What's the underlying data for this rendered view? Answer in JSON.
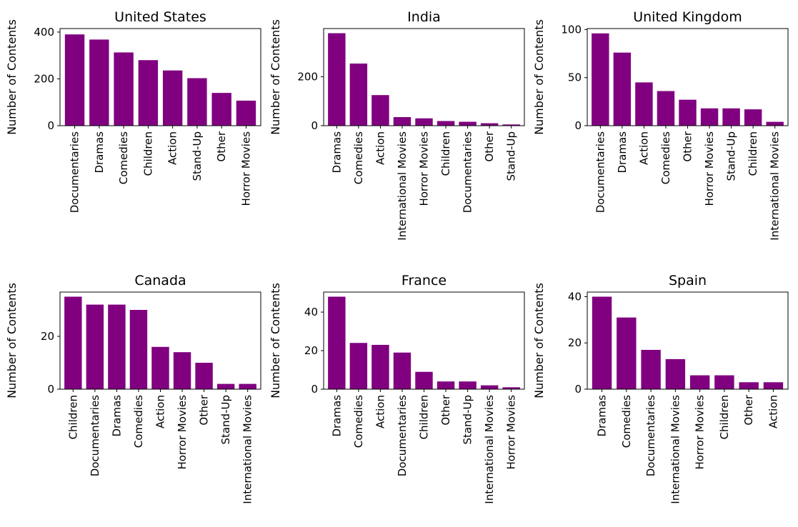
{
  "chart_data": [
    {
      "type": "bar",
      "title": "United States",
      "xlabel": "",
      "ylabel": "Number of Contents",
      "categories": [
        "Documentaries",
        "Dramas",
        "Comedies",
        "Children",
        "Action",
        "Stand-Up",
        "Other",
        "Horror Movies"
      ],
      "values": [
        390,
        368,
        313,
        280,
        236,
        203,
        140,
        107
      ],
      "ylim": [
        0,
        415
      ],
      "yticks": [
        0,
        200,
        400
      ],
      "color": "#800080"
    },
    {
      "type": "bar",
      "title": "India",
      "xlabel": "",
      "ylabel": "Number of Contents",
      "categories": [
        "Dramas",
        "Comedies",
        "Action",
        "International Movies",
        "Horror Movies",
        "Children",
        "Documentaries",
        "Other",
        "Stand-Up"
      ],
      "values": [
        378,
        254,
        125,
        35,
        30,
        19,
        16,
        10,
        5
      ],
      "ylim": [
        0,
        397
      ],
      "yticks": [
        0,
        200
      ],
      "color": "#800080"
    },
    {
      "type": "bar",
      "title": "United Kingdom",
      "xlabel": "",
      "ylabel": "Number of Contents",
      "categories": [
        "Documentaries",
        "Dramas",
        "Action",
        "Comedies",
        "Other",
        "Horror Movies",
        "Stand-Up",
        "Children",
        "International Movies"
      ],
      "values": [
        96,
        76,
        45,
        36,
        27,
        18,
        18,
        17,
        4
      ],
      "ylim": [
        0,
        101
      ],
      "yticks": [
        0,
        50,
        100
      ],
      "color": "#800080"
    },
    {
      "type": "bar",
      "title": "Canada",
      "xlabel": "",
      "ylabel": "Number of Contents",
      "categories": [
        "Children",
        "Documentaries",
        "Dramas",
        "Comedies",
        "Action",
        "Horror Movies",
        "Other",
        "Stand-Up",
        "International Movies"
      ],
      "values": [
        35,
        32,
        32,
        30,
        16,
        14,
        10,
        2,
        2
      ],
      "ylim": [
        0,
        36.75
      ],
      "yticks": [
        0,
        20
      ],
      "color": "#800080"
    },
    {
      "type": "bar",
      "title": "France",
      "xlabel": "",
      "ylabel": "Number of Contents",
      "categories": [
        "Dramas",
        "Comedies",
        "Action",
        "Documentaries",
        "Children",
        "Other",
        "Stand-Up",
        "International Movies",
        "Horror Movies"
      ],
      "values": [
        48,
        24,
        23,
        19,
        9,
        4,
        4,
        2,
        1
      ],
      "ylim": [
        0,
        50.4
      ],
      "yticks": [
        0,
        20,
        40
      ],
      "color": "#800080"
    },
    {
      "type": "bar",
      "title": "Spain",
      "xlabel": "",
      "ylabel": "Number of Contents",
      "categories": [
        "Dramas",
        "Comedies",
        "Documentaries",
        "International Movies",
        "Horror Movies",
        "Children",
        "Other",
        "Action"
      ],
      "values": [
        40,
        31,
        17,
        13,
        6,
        6,
        3,
        3
      ],
      "ylim": [
        0,
        42
      ],
      "yticks": [
        0,
        20,
        40
      ],
      "color": "#800080"
    }
  ]
}
